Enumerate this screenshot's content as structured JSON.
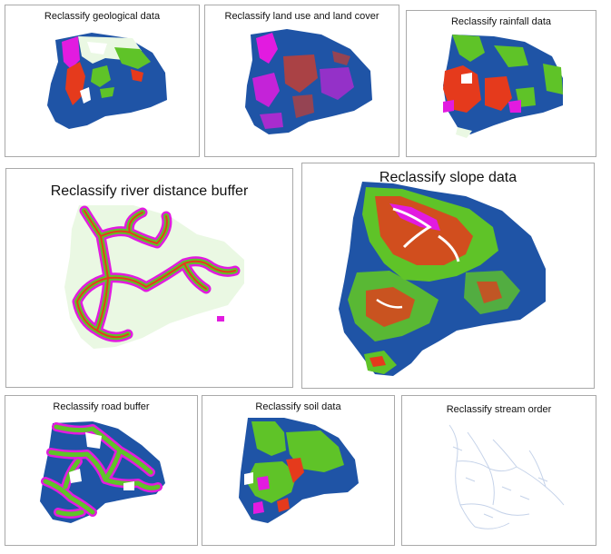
{
  "panels": [
    {
      "title": "Reclassify geological data"
    },
    {
      "title": "Reclassify land use and land cover"
    },
    {
      "title": "Reclassify rainfall data"
    },
    {
      "title": "Reclassify river distance buffer"
    },
    {
      "title": "Reclassify slope data"
    },
    {
      "title": "Reclassify road buffer"
    },
    {
      "title": "Reclassify soil data"
    },
    {
      "title": "Reclassify stream order"
    }
  ],
  "colors": {
    "blue": "#1f54a6",
    "green": "#5fc328",
    "red": "#e53a1c",
    "magenta": "#e21be0",
    "white": "#ffffff",
    "pale": "#eaf8e3",
    "border": "#a9a9a9"
  }
}
